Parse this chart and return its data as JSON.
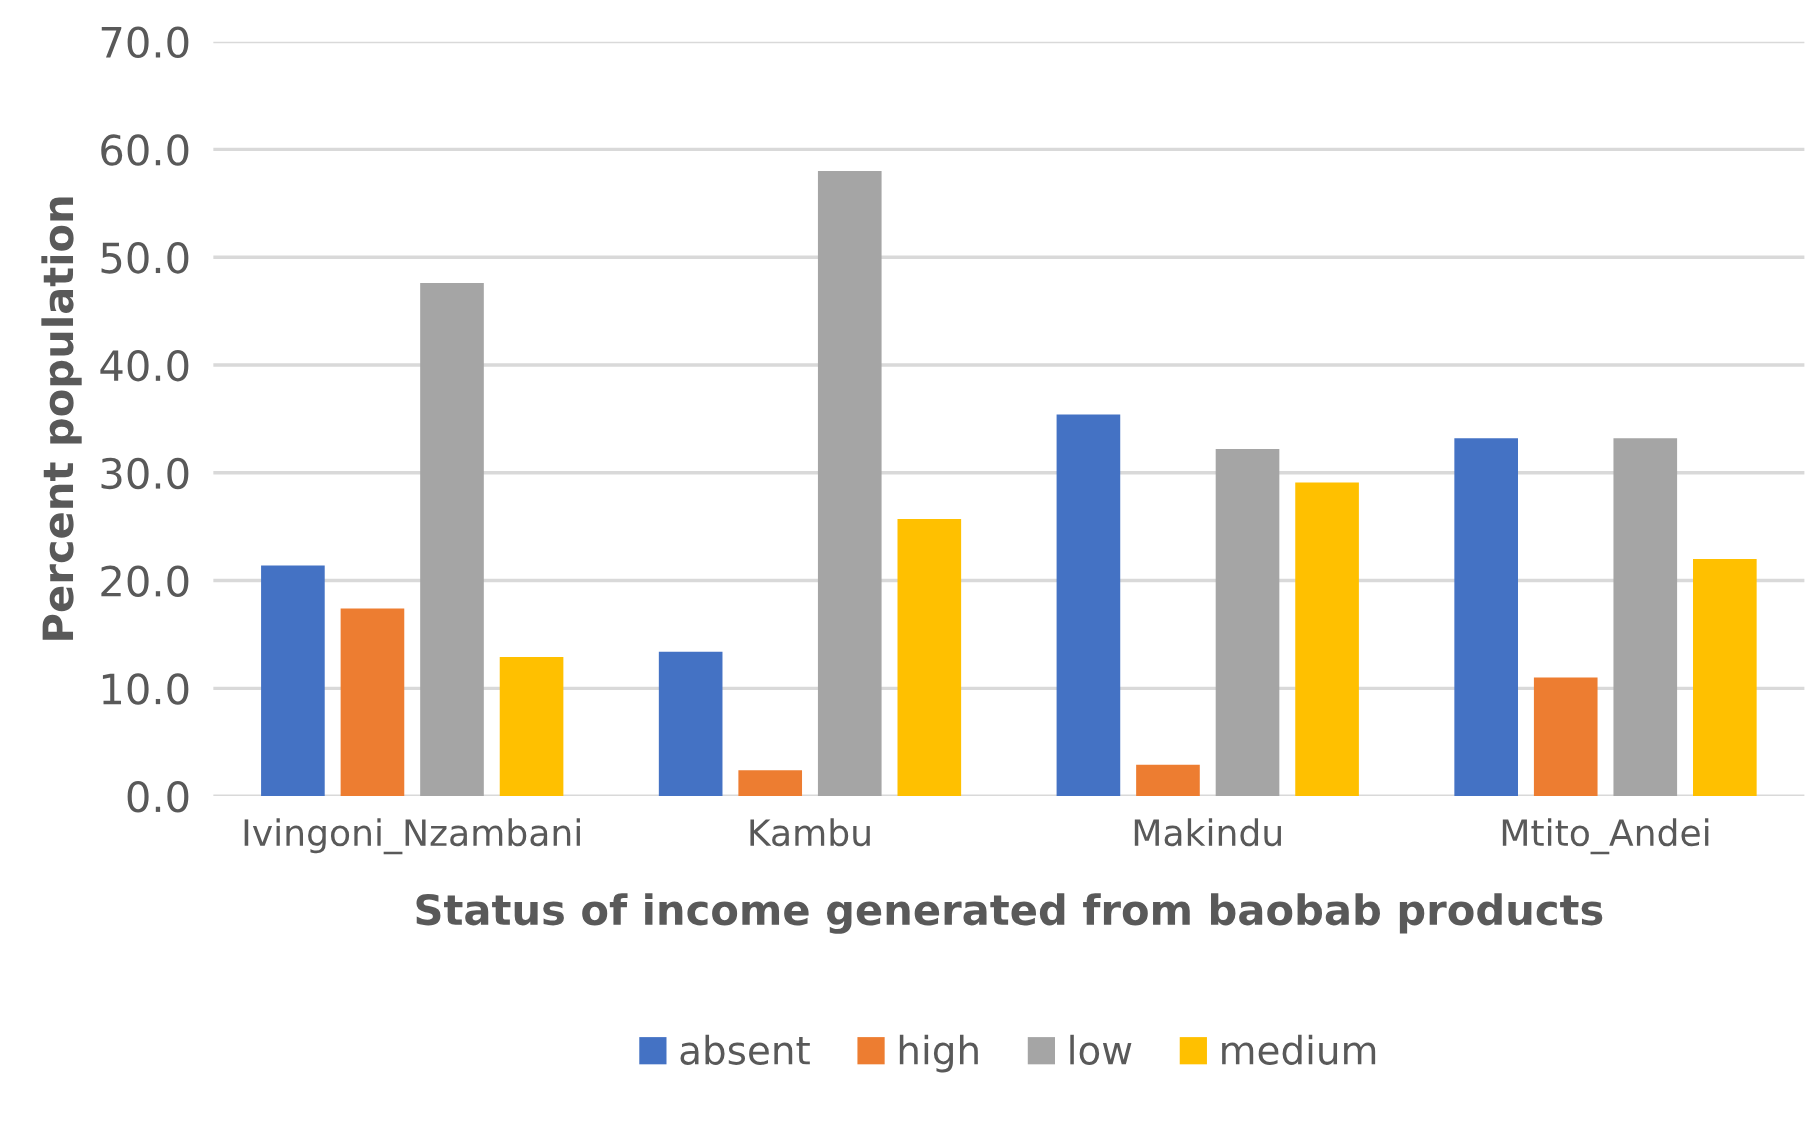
{
  "chart_data": {
    "type": "bar",
    "xlabel": "Status of income generated from baobab products",
    "ylabel": "Percent population",
    "categories": [
      "Ivingoni_Nzambani",
      "Kambu",
      "Makindu",
      "Mtito_Andei"
    ],
    "series": [
      {
        "name": "absent",
        "color": "#4472c4",
        "values": [
          21.4,
          13.4,
          35.4,
          33.2
        ]
      },
      {
        "name": "high",
        "color": "#ed7d31",
        "values": [
          17.4,
          2.4,
          2.9,
          11.0
        ]
      },
      {
        "name": "low",
        "color": "#a5a5a5",
        "values": [
          47.6,
          58.0,
          32.2,
          33.2
        ]
      },
      {
        "name": "medium",
        "color": "#ffc000",
        "values": [
          12.9,
          25.7,
          29.1,
          22.0
        ]
      }
    ],
    "ylim": [
      0,
      70
    ],
    "yticks": [
      {
        "value": 0,
        "label": "0.0"
      },
      {
        "value": 10,
        "label": "10.0"
      },
      {
        "value": 20,
        "label": "20.0"
      },
      {
        "value": 30,
        "label": "30.0"
      },
      {
        "value": 40,
        "label": "40.0"
      },
      {
        "value": 50,
        "label": "50.0"
      },
      {
        "value": 60,
        "label": "60.0"
      },
      {
        "value": 70,
        "label": "70.0"
      }
    ],
    "grid": "y",
    "legend": "bottom"
  }
}
